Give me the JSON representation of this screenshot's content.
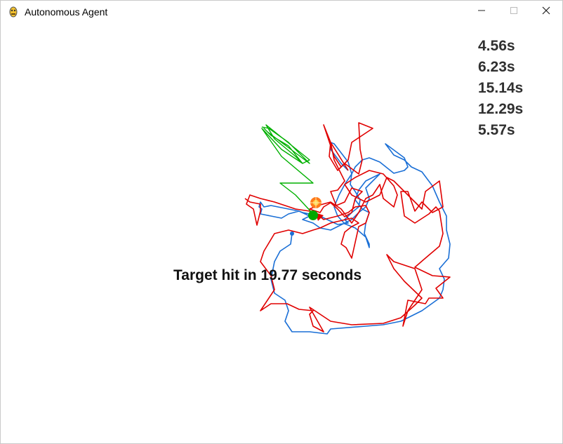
{
  "window": {
    "title": "Autonomous Agent",
    "controls": [
      "minimize-icon",
      "maximize-icon",
      "close-icon"
    ]
  },
  "game": {
    "lap_times": [
      "4.56s",
      "6.23s",
      "15.14s",
      "12.29s",
      "5.57s"
    ],
    "status_message": "Target hit in 19.77 seconds",
    "colors": {
      "red_path": "#e00000",
      "blue_path": "#1a6fd6",
      "green_path": "#00b000",
      "agent": "#00a800",
      "target": "#ff7a1a",
      "timer_text": "#303030"
    }
  }
}
